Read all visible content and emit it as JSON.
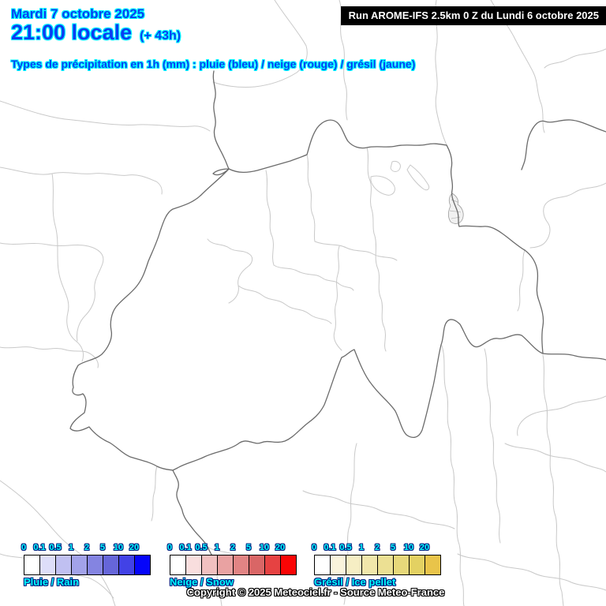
{
  "header": {
    "date": "Mardi 7 octobre 2025",
    "time": "21:00 locale",
    "offset": "(+ 43h)",
    "subtitle": "Types de précipitation en 1h (mm) : pluie (bleu) / neige (rouge) / grésil (jaune)"
  },
  "run_info": {
    "label": "Run AROME-IFS 2.5km 0 Z du Lundi 6 octobre 2025"
  },
  "legends": [
    {
      "id": "rain",
      "name": "Pluie / Rain",
      "ticks": [
        "0",
        "0.1",
        "0.5",
        "1",
        "2",
        "5",
        "10",
        "20"
      ],
      "colors": [
        "#ffffff",
        "#dedef9",
        "#c0c0f1",
        "#a2a2e9",
        "#8484e1",
        "#6666d9",
        "#4242e6",
        "#0505fa"
      ]
    },
    {
      "id": "snow",
      "name": "Neige / Snow",
      "ticks": [
        "0",
        "0.1",
        "0.5",
        "1",
        "2",
        "5",
        "10",
        "20"
      ],
      "colors": [
        "#ffffff",
        "#f9dede",
        "#f1c0c0",
        "#e9a2a2",
        "#e18484",
        "#d96666",
        "#e64242",
        "#fa0505"
      ]
    },
    {
      "id": "sleet",
      "name": "Grésil / Ice pellet",
      "ticks": [
        "0",
        "0.1",
        "0.5",
        "1",
        "2",
        "5",
        "10",
        "20"
      ],
      "colors": [
        "#ffffff",
        "#faf4dc",
        "#f6eec4",
        "#f1e7ab",
        "#ece093",
        "#e7d87a",
        "#e3d162",
        "#e9c44a"
      ]
    }
  ],
  "copyright": "Copyright © 2025 Meteociel.fr - Source Meteo-France",
  "colors": {
    "title_fill": "#0a3df2",
    "title_outline": "#00ffff",
    "legend_text_fill": "#00ffff",
    "legend_text_outline": "#001f80",
    "country_border": "#6b6b6b",
    "admin_border": "#c9c9c9",
    "run_box_bg": "#000000",
    "run_box_text": "#ffffff"
  }
}
